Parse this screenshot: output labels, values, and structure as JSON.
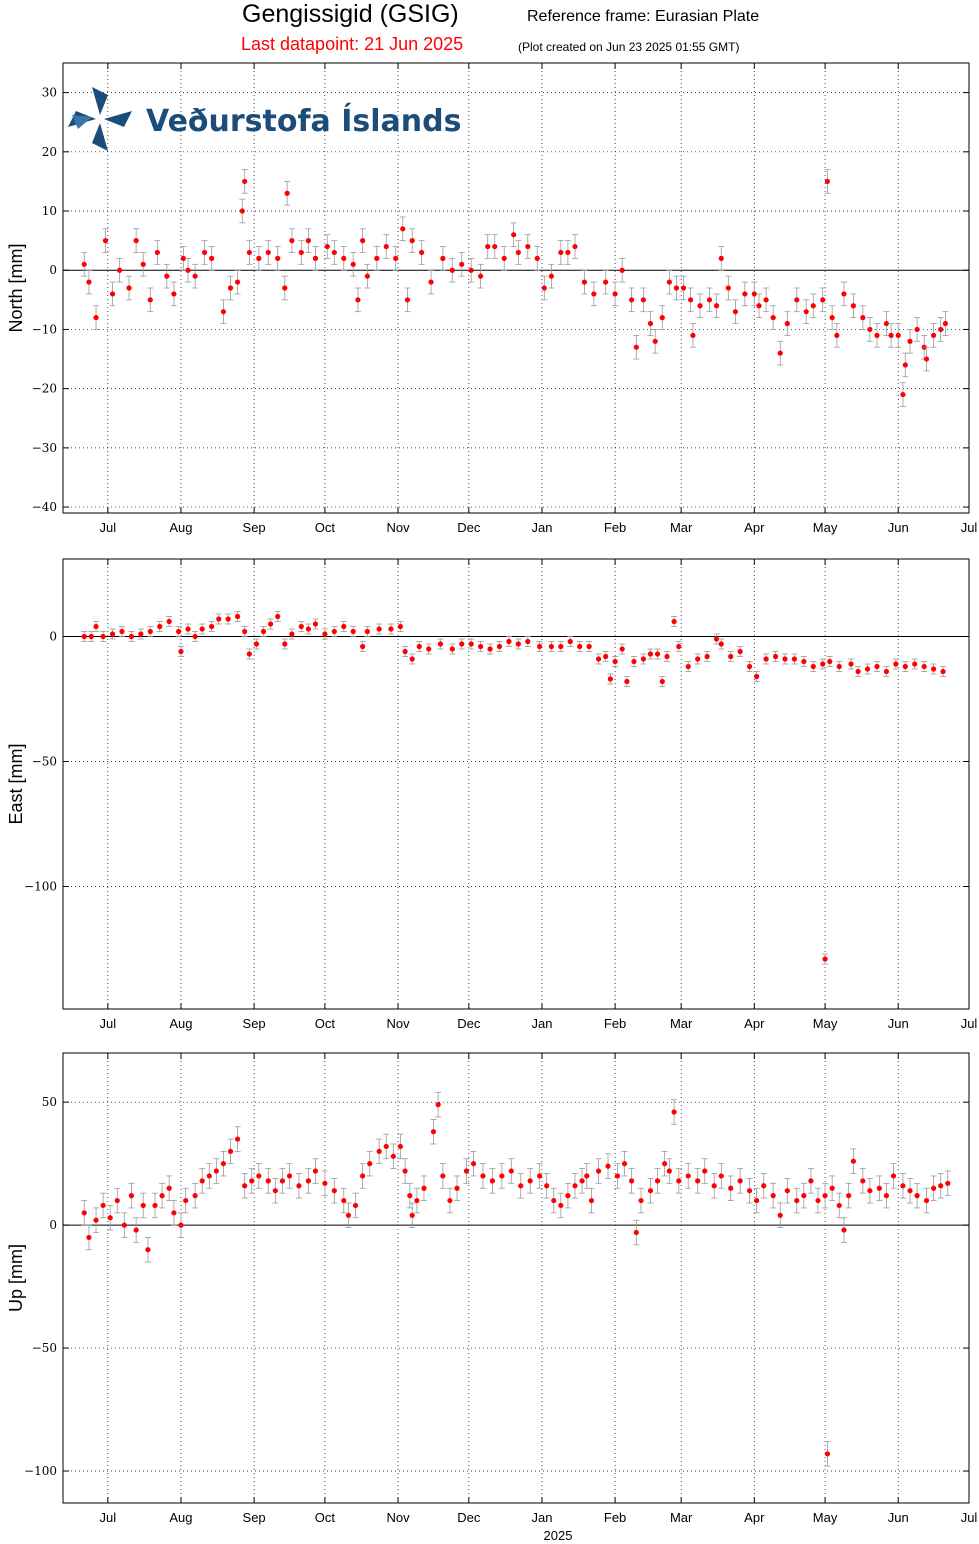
{
  "header": {
    "station": "Gengissigid (GSIG)",
    "reference_frame": "Reference frame: Eurasian Plate",
    "last_datapoint": "Last datapoint: 21 Jun 2025",
    "plot_created": "(Plot created on Jun 23 2025 01:55 GMT)"
  },
  "logo": {
    "text": "Veðurstofa Íslands",
    "icon": "vedurstofa-logo-icon",
    "color": "#1a4d7a"
  },
  "colors": {
    "points": "#ff0000",
    "errorbars": "#999999",
    "zero_line": "#000000"
  },
  "x_axis": {
    "months": [
      "Jul",
      "Aug",
      "Sep",
      "Oct",
      "Nov",
      "Dec",
      "Jan",
      "Feb",
      "Mar",
      "Apr",
      "May",
      "Jun",
      "Jul"
    ],
    "month_days": [
      0,
      31,
      62,
      92,
      123,
      153,
      184,
      215,
      243,
      274,
      304,
      335,
      365
    ],
    "xlim_days": [
      -19,
      365
    ],
    "year_label": "2025",
    "grid": true
  },
  "chart_data": [
    {
      "type": "scatter",
      "name": "north",
      "ylabel": "North [mm]",
      "ylim": [
        -41,
        35
      ],
      "yticks": [
        -40,
        -30,
        -20,
        -10,
        0,
        10,
        20,
        30
      ],
      "yticklabels": [
        "−40",
        "−30",
        "−20",
        "−10",
        "0",
        "10",
        "20",
        "30"
      ],
      "err": 2,
      "points": [
        [
          -10,
          1
        ],
        [
          -8,
          -2
        ],
        [
          -5,
          -8
        ],
        [
          -1,
          5
        ],
        [
          2,
          -4
        ],
        [
          5,
          0
        ],
        [
          9,
          -3
        ],
        [
          12,
          5
        ],
        [
          15,
          1
        ],
        [
          18,
          -5
        ],
        [
          21,
          3
        ],
        [
          25,
          -1
        ],
        [
          28,
          -4
        ],
        [
          32,
          2
        ],
        [
          34,
          0
        ],
        [
          37,
          -1
        ],
        [
          41,
          3
        ],
        [
          44,
          2
        ],
        [
          49,
          -7
        ],
        [
          52,
          -3
        ],
        [
          55,
          -2
        ],
        [
          57,
          10
        ],
        [
          58,
          15
        ],
        [
          60,
          3
        ],
        [
          64,
          2
        ],
        [
          68,
          3
        ],
        [
          72,
          2
        ],
        [
          75,
          -3
        ],
        [
          76,
          13
        ],
        [
          78,
          5
        ],
        [
          82,
          3
        ],
        [
          85,
          5
        ],
        [
          88,
          2
        ],
        [
          93,
          4
        ],
        [
          96,
          3
        ],
        [
          100,
          2
        ],
        [
          104,
          1
        ],
        [
          106,
          -5
        ],
        [
          108,
          5
        ],
        [
          110,
          -1
        ],
        [
          114,
          2
        ],
        [
          118,
          4
        ],
        [
          122,
          2
        ],
        [
          125,
          7
        ],
        [
          127,
          -5
        ],
        [
          129,
          5
        ],
        [
          133,
          3
        ],
        [
          137,
          -2
        ],
        [
          142,
          2
        ],
        [
          146,
          0
        ],
        [
          150,
          1
        ],
        [
          154,
          0
        ],
        [
          158,
          -1
        ],
        [
          161,
          4
        ],
        [
          164,
          4
        ],
        [
          168,
          2
        ],
        [
          172,
          6
        ],
        [
          174,
          3
        ],
        [
          178,
          4
        ],
        [
          182,
          2
        ],
        [
          185,
          -3
        ],
        [
          188,
          -1
        ],
        [
          192,
          3
        ],
        [
          195,
          3
        ],
        [
          198,
          4
        ],
        [
          202,
          -2
        ],
        [
          206,
          -4
        ],
        [
          211,
          -2
        ],
        [
          215,
          -4
        ],
        [
          218,
          0
        ],
        [
          222,
          -5
        ],
        [
          224,
          -13
        ],
        [
          227,
          -5
        ],
        [
          230,
          -9
        ],
        [
          232,
          -12
        ],
        [
          235,
          -8
        ],
        [
          238,
          -2
        ],
        [
          241,
          -3
        ],
        [
          244,
          -3
        ],
        [
          247,
          -5
        ],
        [
          248,
          -11
        ],
        [
          251,
          -6
        ],
        [
          255,
          -5
        ],
        [
          258,
          -6
        ],
        [
          260,
          2
        ],
        [
          263,
          -3
        ],
        [
          266,
          -7
        ],
        [
          270,
          -4
        ],
        [
          274,
          -4
        ],
        [
          276,
          -6
        ],
        [
          279,
          -5
        ],
        [
          282,
          -8
        ],
        [
          285,
          -14
        ],
        [
          288,
          -9
        ],
        [
          292,
          -5
        ],
        [
          296,
          -7
        ],
        [
          299,
          -6
        ],
        [
          303,
          -5
        ],
        [
          305,
          15
        ],
        [
          307,
          -8
        ],
        [
          309,
          -11
        ],
        [
          312,
          -4
        ],
        [
          316,
          -6
        ],
        [
          320,
          -8
        ],
        [
          323,
          -10
        ],
        [
          326,
          -11
        ],
        [
          330,
          -9
        ],
        [
          332,
          -11
        ],
        [
          335,
          -11
        ],
        [
          337,
          -21
        ],
        [
          338,
          -16
        ],
        [
          340,
          -12
        ],
        [
          343,
          -10
        ],
        [
          346,
          -13
        ],
        [
          347,
          -15
        ],
        [
          350,
          -11
        ],
        [
          353,
          -10
        ],
        [
          355,
          -9
        ]
      ]
    },
    {
      "type": "scatter",
      "name": "east",
      "ylabel": "East [mm]",
      "ylim": [
        -149,
        31
      ],
      "yticks": [
        -100,
        -50,
        0
      ],
      "yticklabels": [
        "−100",
        "−50",
        "0"
      ],
      "err": 2,
      "points": [
        [
          -10,
          0
        ],
        [
          -7,
          0
        ],
        [
          -5,
          4
        ],
        [
          -2,
          0
        ],
        [
          2,
          1
        ],
        [
          6,
          2
        ],
        [
          10,
          0
        ],
        [
          14,
          1
        ],
        [
          18,
          2
        ],
        [
          22,
          4
        ],
        [
          26,
          6
        ],
        [
          30,
          2
        ],
        [
          31,
          -6
        ],
        [
          34,
          3
        ],
        [
          37,
          0
        ],
        [
          40,
          3
        ],
        [
          44,
          4
        ],
        [
          47,
          7
        ],
        [
          51,
          7
        ],
        [
          55,
          8
        ],
        [
          58,
          2
        ],
        [
          60,
          -7
        ],
        [
          63,
          -3
        ],
        [
          66,
          2
        ],
        [
          69,
          5
        ],
        [
          72,
          8
        ],
        [
          75,
          -3
        ],
        [
          78,
          1
        ],
        [
          82,
          4
        ],
        [
          85,
          3
        ],
        [
          88,
          5
        ],
        [
          92,
          1
        ],
        [
          96,
          2
        ],
        [
          100,
          4
        ],
        [
          104,
          2
        ],
        [
          108,
          -4
        ],
        [
          110,
          2
        ],
        [
          115,
          3
        ],
        [
          120,
          3
        ],
        [
          124,
          4
        ],
        [
          126,
          -6
        ],
        [
          129,
          -9
        ],
        [
          132,
          -4
        ],
        [
          136,
          -5
        ],
        [
          141,
          -3
        ],
        [
          146,
          -5
        ],
        [
          150,
          -3
        ],
        [
          154,
          -3
        ],
        [
          158,
          -4
        ],
        [
          162,
          -5
        ],
        [
          166,
          -4
        ],
        [
          170,
          -2
        ],
        [
          174,
          -3
        ],
        [
          178,
          -2
        ],
        [
          183,
          -4
        ],
        [
          188,
          -4
        ],
        [
          192,
          -4
        ],
        [
          196,
          -2
        ],
        [
          200,
          -4
        ],
        [
          204,
          -4
        ],
        [
          208,
          -9
        ],
        [
          211,
          -8
        ],
        [
          213,
          -17
        ],
        [
          215,
          -10
        ],
        [
          218,
          -5
        ],
        [
          220,
          -18
        ],
        [
          223,
          -10
        ],
        [
          227,
          -9
        ],
        [
          230,
          -7
        ],
        [
          233,
          -7
        ],
        [
          235,
          -18
        ],
        [
          237,
          -8
        ],
        [
          240,
          6
        ],
        [
          242,
          -4
        ],
        [
          246,
          -12
        ],
        [
          250,
          -9
        ],
        [
          254,
          -8
        ],
        [
          258,
          -1
        ],
        [
          260,
          -3
        ],
        [
          264,
          -8
        ],
        [
          268,
          -6
        ],
        [
          272,
          -12
        ],
        [
          275,
          -16
        ],
        [
          279,
          -9
        ],
        [
          283,
          -8
        ],
        [
          287,
          -9
        ],
        [
          291,
          -9
        ],
        [
          295,
          -10
        ],
        [
          299,
          -12
        ],
        [
          303,
          -11
        ],
        [
          304,
          -129
        ],
        [
          306,
          -10
        ],
        [
          310,
          -12
        ],
        [
          315,
          -11
        ],
        [
          318,
          -14
        ],
        [
          322,
          -13
        ],
        [
          326,
          -12
        ],
        [
          330,
          -14
        ],
        [
          334,
          -11
        ],
        [
          338,
          -12
        ],
        [
          342,
          -11
        ],
        [
          346,
          -12
        ],
        [
          350,
          -13
        ],
        [
          354,
          -14
        ]
      ]
    },
    {
      "type": "scatter",
      "name": "up",
      "ylabel": "Up [mm]",
      "ylim": [
        -113,
        70
      ],
      "yticks": [
        -100,
        -50,
        0,
        50
      ],
      "yticklabels": [
        "−100",
        "−50",
        "0",
        "50"
      ],
      "err": 5,
      "points": [
        [
          -10,
          5
        ],
        [
          -8,
          -5
        ],
        [
          -5,
          2
        ],
        [
          -2,
          8
        ],
        [
          1,
          3
        ],
        [
          4,
          10
        ],
        [
          7,
          0
        ],
        [
          10,
          12
        ],
        [
          12,
          -2
        ],
        [
          15,
          8
        ],
        [
          17,
          -10
        ],
        [
          20,
          8
        ],
        [
          23,
          12
        ],
        [
          26,
          15
        ],
        [
          28,
          5
        ],
        [
          31,
          0
        ],
        [
          33,
          10
        ],
        [
          37,
          12
        ],
        [
          40,
          18
        ],
        [
          43,
          20
        ],
        [
          46,
          22
        ],
        [
          49,
          25
        ],
        [
          52,
          30
        ],
        [
          55,
          35
        ],
        [
          58,
          16
        ],
        [
          61,
          18
        ],
        [
          64,
          20
        ],
        [
          68,
          18
        ],
        [
          71,
          14
        ],
        [
          74,
          18
        ],
        [
          77,
          20
        ],
        [
          81,
          16
        ],
        [
          85,
          18
        ],
        [
          88,
          22
        ],
        [
          92,
          17
        ],
        [
          96,
          14
        ],
        [
          100,
          10
        ],
        [
          102,
          4
        ],
        [
          105,
          8
        ],
        [
          108,
          20
        ],
        [
          111,
          25
        ],
        [
          115,
          30
        ],
        [
          118,
          32
        ],
        [
          121,
          28
        ],
        [
          124,
          32
        ],
        [
          126,
          22
        ],
        [
          128,
          12
        ],
        [
          129,
          4
        ],
        [
          131,
          10
        ],
        [
          134,
          15
        ],
        [
          138,
          38
        ],
        [
          140,
          49
        ],
        [
          142,
          20
        ],
        [
          145,
          10
        ],
        [
          148,
          15
        ],
        [
          152,
          22
        ],
        [
          155,
          25
        ],
        [
          159,
          20
        ],
        [
          163,
          18
        ],
        [
          167,
          20
        ],
        [
          171,
          22
        ],
        [
          175,
          16
        ],
        [
          179,
          18
        ],
        [
          183,
          20
        ],
        [
          186,
          16
        ],
        [
          189,
          10
        ],
        [
          192,
          8
        ],
        [
          195,
          12
        ],
        [
          198,
          16
        ],
        [
          201,
          18
        ],
        [
          203,
          20
        ],
        [
          205,
          10
        ],
        [
          208,
          22
        ],
        [
          212,
          24
        ],
        [
          216,
          20
        ],
        [
          219,
          25
        ],
        [
          222,
          18
        ],
        [
          224,
          -3
        ],
        [
          226,
          10
        ],
        [
          230,
          14
        ],
        [
          233,
          18
        ],
        [
          236,
          25
        ],
        [
          238,
          22
        ],
        [
          240,
          46
        ],
        [
          242,
          18
        ],
        [
          246,
          20
        ],
        [
          250,
          18
        ],
        [
          253,
          22
        ],
        [
          257,
          16
        ],
        [
          260,
          20
        ],
        [
          264,
          15
        ],
        [
          268,
          18
        ],
        [
          272,
          14
        ],
        [
          275,
          10
        ],
        [
          278,
          16
        ],
        [
          282,
          12
        ],
        [
          285,
          4
        ],
        [
          288,
          14
        ],
        [
          292,
          10
        ],
        [
          295,
          12
        ],
        [
          298,
          18
        ],
        [
          301,
          10
        ],
        [
          304,
          12
        ],
        [
          305,
          -93
        ],
        [
          307,
          15
        ],
        [
          310,
          8
        ],
        [
          312,
          -2
        ],
        [
          314,
          12
        ],
        [
          316,
          26
        ],
        [
          320,
          18
        ],
        [
          323,
          14
        ],
        [
          327,
          15
        ],
        [
          330,
          12
        ],
        [
          333,
          20
        ],
        [
          337,
          16
        ],
        [
          340,
          14
        ],
        [
          343,
          12
        ],
        [
          347,
          10
        ],
        [
          350,
          15
        ],
        [
          353,
          16
        ],
        [
          356,
          17
        ]
      ]
    }
  ]
}
